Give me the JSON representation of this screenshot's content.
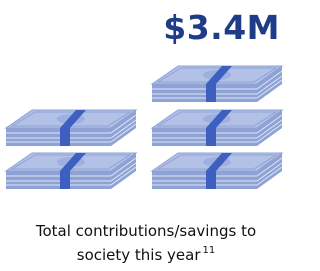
{
  "headline": "$3.4M",
  "caption": {
    "text": "Total contributions/savings to society this year",
    "footnote": "11"
  }
}
